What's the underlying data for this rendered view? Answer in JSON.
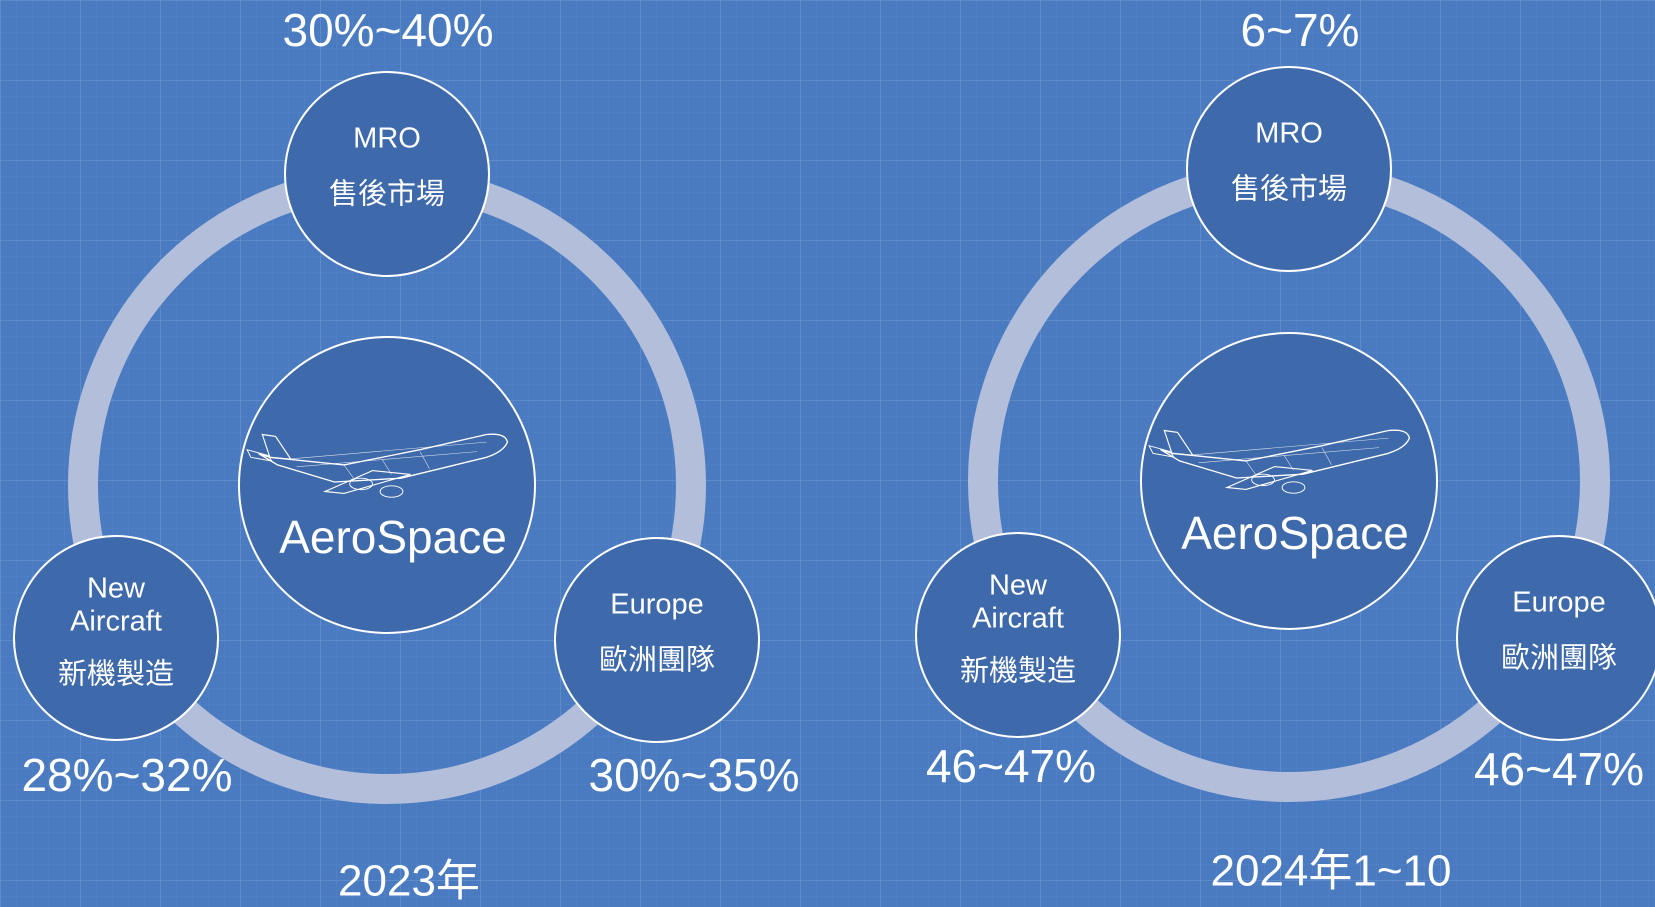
{
  "diagrams": [
    {
      "center": "AeroSpace",
      "caption": "2023年",
      "nodes": [
        {
          "lines": [
            "MRO",
            "售後市場"
          ],
          "value": "30%~40%"
        },
        {
          "lines": [
            "New",
            "Aircraft",
            "新機製造"
          ],
          "value": "28%~32%"
        },
        {
          "lines": [
            "Europe",
            "歐洲團隊"
          ],
          "value": "30%~35%"
        }
      ]
    },
    {
      "center": "AeroSpace",
      "caption": "2024年1~10",
      "nodes": [
        {
          "lines": [
            "MRO",
            "售後市場"
          ],
          "value": "6~7%"
        },
        {
          "lines": [
            "New",
            "Aircraft",
            "新機製造"
          ],
          "value": "46~47%"
        },
        {
          "lines": [
            "Europe",
            "歐洲團隊"
          ],
          "value": "46~47%"
        }
      ]
    }
  ]
}
